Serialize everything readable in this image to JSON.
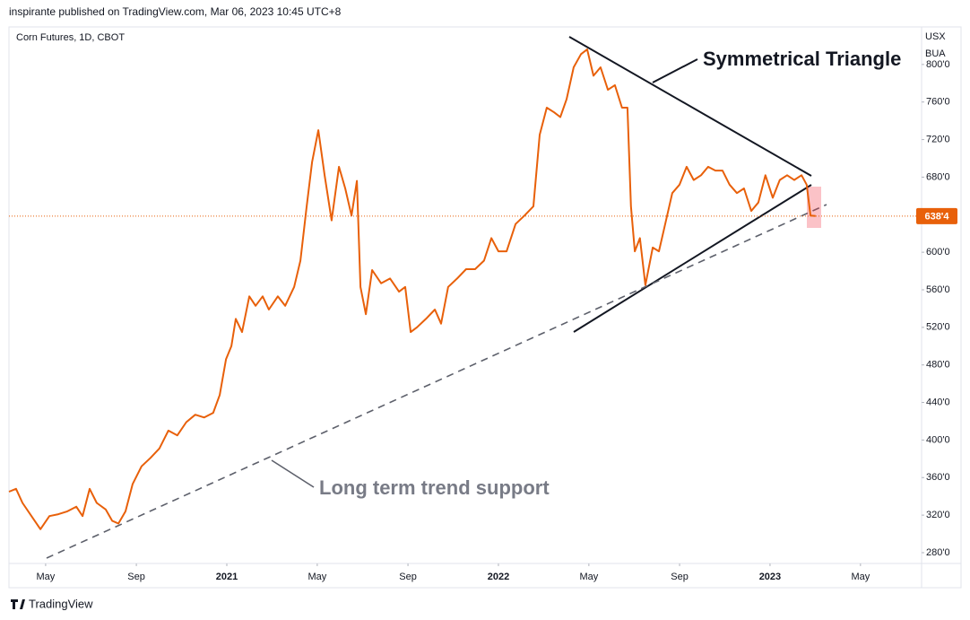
{
  "header": {
    "published": "inspirante published on TradingView.com, Mar 06, 2023 10:45 UTC+8",
    "brand": "TradingView"
  },
  "chart_data": {
    "type": "line",
    "title": "Corn Futures, 1D, CBOT",
    "currency": "USX",
    "unit": "BUA",
    "annotations": [
      "Symmetrical Triangle",
      "Long term trend support"
    ],
    "last_price": {
      "value": 638.5,
      "label": "638'4"
    },
    "xlim": [
      2020.198,
      2023.558
    ],
    "ylim": [
      268.5,
      840
    ],
    "xticks": [
      {
        "value": 2020.333,
        "label": "May"
      },
      {
        "value": 2020.667,
        "label": "Sep"
      },
      2021,
      {
        "value": 2021.333,
        "label": "May"
      },
      {
        "value": 2021.667,
        "label": "Sep"
      },
      2022,
      {
        "value": 2022.333,
        "label": "May"
      },
      {
        "value": 2022.667,
        "label": "Sep"
      },
      2023,
      {
        "value": 2023.333,
        "label": "May"
      }
    ],
    "yticks": [
      {
        "value": 280,
        "label": "280'0"
      },
      {
        "value": 320,
        "label": "320'0"
      },
      {
        "value": 360,
        "label": "360'0"
      },
      {
        "value": 400,
        "label": "400'0"
      },
      {
        "value": 440,
        "label": "440'0"
      },
      {
        "value": 480,
        "label": "480'0"
      },
      {
        "value": 520,
        "label": "520'0"
      },
      {
        "value": 560,
        "label": "560'0"
      },
      {
        "value": 600,
        "label": "600'0"
      },
      {
        "value": 640,
        "label": "640'0"
      },
      {
        "value": 680,
        "label": "680'0"
      },
      {
        "value": 720,
        "label": "720'0"
      },
      {
        "value": 760,
        "label": "760'0"
      },
      {
        "value": 800,
        "label": "800'0"
      }
    ],
    "grid": false,
    "series": [
      {
        "name": "Corn Futures",
        "color": "#e8600a",
        "x": [
          2020.198,
          2020.224,
          2020.248,
          2020.281,
          2020.314,
          2020.347,
          2020.38,
          2020.413,
          2020.446,
          2020.469,
          2020.495,
          2020.521,
          2020.554,
          2020.578,
          2020.601,
          2020.627,
          2020.653,
          2020.686,
          2020.719,
          2020.752,
          2020.785,
          2020.818,
          2020.851,
          2020.884,
          2020.917,
          2020.95,
          2020.974,
          2020.997,
          2021.017,
          2021.033,
          2021.056,
          2021.083,
          2021.106,
          2021.132,
          2021.155,
          2021.188,
          2021.215,
          2021.248,
          2021.271,
          2021.294,
          2021.314,
          2021.337,
          2021.36,
          2021.386,
          2021.413,
          2021.436,
          2021.459,
          2021.479,
          2021.492,
          2021.512,
          2021.535,
          2021.568,
          2021.601,
          2021.634,
          2021.657,
          2021.677,
          2021.7,
          2021.733,
          2021.766,
          2021.789,
          2021.815,
          2021.848,
          2021.881,
          2021.914,
          2021.947,
          2021.974,
          2022.0,
          2022.03,
          2022.063,
          2022.096,
          2022.129,
          2022.152,
          2022.178,
          2022.205,
          2022.228,
          2022.251,
          2022.277,
          2022.304,
          2022.327,
          2022.35,
          2022.376,
          2022.403,
          2022.429,
          2022.455,
          2022.475,
          2022.488,
          2022.502,
          2022.521,
          2022.541,
          2022.568,
          2022.591,
          2022.614,
          2022.64,
          2022.667,
          2022.693,
          2022.719,
          2022.746,
          2022.772,
          2022.799,
          2022.825,
          2022.851,
          2022.878,
          2022.904,
          2022.931,
          2022.957,
          2022.983,
          2023.01,
          2023.036,
          2023.063,
          2023.089,
          2023.116,
          2023.135,
          2023.149,
          2023.168
        ],
        "values": [
          345,
          348,
          333,
          319,
          305,
          319,
          321,
          324,
          329,
          319,
          348,
          333,
          326,
          314,
          311,
          324,
          353,
          372,
          381,
          391,
          410,
          405,
          419,
          427,
          424,
          429,
          448,
          486,
          500,
          529,
          515,
          553,
          543,
          553,
          539,
          553,
          543,
          563,
          591,
          649,
          696,
          730,
          682,
          634,
          691,
          668,
          639,
          676,
          563,
          534,
          581,
          567,
          572,
          558,
          563,
          515,
          520,
          529,
          539,
          524,
          563,
          572,
          582,
          582,
          591,
          615,
          601,
          601,
          630,
          639,
          649,
          725,
          754,
          749,
          744,
          763,
          797,
          811,
          816,
          788,
          797,
          773,
          778,
          754,
          754,
          649,
          601,
          615,
          565,
          605,
          601,
          630,
          663,
          672,
          691,
          677,
          682,
          691,
          687,
          687,
          672,
          663,
          668,
          644,
          653,
          682,
          658,
          677,
          682,
          677,
          682,
          672,
          639,
          638.5
        ]
      }
    ]
  }
}
